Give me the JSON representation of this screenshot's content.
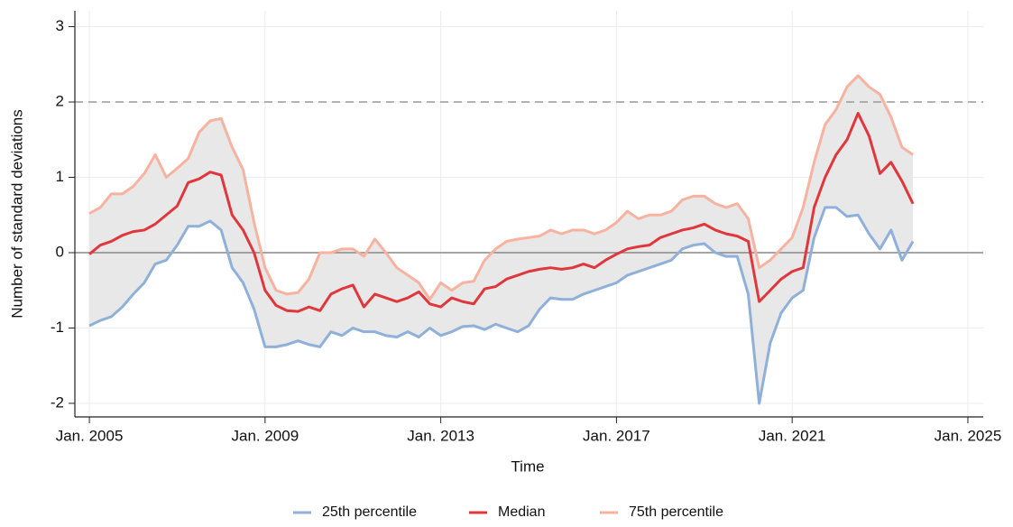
{
  "chart_data": {
    "type": "line",
    "x_label": "Time",
    "y_label": "Number of standard deviations",
    "x": [
      2005,
      2005.25,
      2005.5,
      2005.75,
      2006,
      2006.25,
      2006.5,
      2006.75,
      2007,
      2007.25,
      2007.5,
      2007.75,
      2008,
      2008.25,
      2008.5,
      2008.75,
      2009,
      2009.25,
      2009.5,
      2009.75,
      2010,
      2010.25,
      2010.5,
      2010.75,
      2011,
      2011.25,
      2011.5,
      2011.75,
      2012,
      2012.25,
      2012.5,
      2012.75,
      2013,
      2013.25,
      2013.5,
      2013.75,
      2014,
      2014.25,
      2014.5,
      2014.75,
      2015,
      2015.25,
      2015.5,
      2015.75,
      2016,
      2016.25,
      2016.5,
      2016.75,
      2017,
      2017.25,
      2017.5,
      2017.75,
      2018,
      2018.25,
      2018.5,
      2018.75,
      2019,
      2019.25,
      2019.5,
      2019.75,
      2020,
      2020.25,
      2020.5,
      2020.75,
      2021,
      2021.25,
      2021.5,
      2021.75,
      2022,
      2022.25,
      2022.5,
      2022.75,
      2023,
      2023.25,
      2023.5,
      2023.75
    ],
    "series": [
      {
        "name": "25th percentile",
        "color": "#8fb0d9",
        "values": [
          -0.97,
          -0.9,
          -0.85,
          -0.72,
          -0.55,
          -0.4,
          -0.15,
          -0.1,
          0.1,
          0.35,
          0.35,
          0.42,
          0.3,
          -0.2,
          -0.4,
          -0.75,
          -1.25,
          -1.25,
          -1.22,
          -1.17,
          -1.22,
          -1.25,
          -1.05,
          -1.1,
          -1.0,
          -1.05,
          -1.05,
          -1.1,
          -1.12,
          -1.05,
          -1.12,
          -1.0,
          -1.1,
          -1.05,
          -0.98,
          -0.97,
          -1.02,
          -0.95,
          -1.0,
          -1.05,
          -0.97,
          -0.75,
          -0.6,
          -0.62,
          -0.62,
          -0.55,
          -0.5,
          -0.45,
          -0.4,
          -0.3,
          -0.25,
          -0.2,
          -0.15,
          -0.1,
          0.05,
          0.1,
          0.12,
          0.0,
          -0.05,
          -0.05,
          -0.55,
          -2.0,
          -1.2,
          -0.8,
          -0.6,
          -0.5,
          0.2,
          0.6,
          0.6,
          0.48,
          0.5,
          0.25,
          0.05,
          0.3,
          -0.1,
          0.15
        ]
      },
      {
        "name": "Median",
        "color": "#e0373c",
        "values": [
          -0.02,
          0.1,
          0.15,
          0.23,
          0.28,
          0.3,
          0.38,
          0.5,
          0.62,
          0.93,
          0.98,
          1.07,
          1.03,
          0.5,
          0.3,
          0.0,
          -0.5,
          -0.7,
          -0.77,
          -0.78,
          -0.72,
          -0.77,
          -0.55,
          -0.48,
          -0.43,
          -0.72,
          -0.55,
          -0.6,
          -0.65,
          -0.6,
          -0.52,
          -0.68,
          -0.72,
          -0.6,
          -0.65,
          -0.68,
          -0.48,
          -0.45,
          -0.35,
          -0.3,
          -0.25,
          -0.22,
          -0.2,
          -0.22,
          -0.2,
          -0.15,
          -0.2,
          -0.1,
          -0.02,
          0.05,
          0.08,
          0.1,
          0.2,
          0.25,
          0.3,
          0.33,
          0.38,
          0.3,
          0.25,
          0.22,
          0.15,
          -0.65,
          -0.5,
          -0.35,
          -0.25,
          -0.2,
          0.6,
          1.0,
          1.3,
          1.5,
          1.85,
          1.55,
          1.05,
          1.2,
          0.95,
          0.65
        ]
      },
      {
        "name": "75th percentile",
        "color": "#f7b2a0",
        "values": [
          0.52,
          0.6,
          0.78,
          0.78,
          0.88,
          1.05,
          1.3,
          1.0,
          1.12,
          1.25,
          1.6,
          1.75,
          1.78,
          1.4,
          1.1,
          0.4,
          -0.2,
          -0.5,
          -0.55,
          -0.53,
          -0.35,
          0.0,
          0.0,
          0.05,
          0.05,
          -0.05,
          0.18,
          0.0,
          -0.2,
          -0.3,
          -0.4,
          -0.62,
          -0.4,
          -0.5,
          -0.4,
          -0.38,
          -0.1,
          0.05,
          0.15,
          0.18,
          0.2,
          0.22,
          0.3,
          0.25,
          0.3,
          0.3,
          0.25,
          0.3,
          0.4,
          0.55,
          0.45,
          0.5,
          0.5,
          0.55,
          0.7,
          0.75,
          0.75,
          0.65,
          0.6,
          0.65,
          0.45,
          -0.2,
          -0.1,
          0.05,
          0.2,
          0.6,
          1.2,
          1.7,
          1.9,
          2.2,
          2.35,
          2.2,
          2.1,
          1.8,
          1.4,
          1.3
        ]
      }
    ],
    "band": {
      "lower": 0,
      "upper": 2,
      "color": "#e8e8e8"
    },
    "reference_lines": [
      {
        "value": 2,
        "style": "dashed",
        "color": "#999999"
      },
      {
        "value": 0,
        "style": "solid",
        "color": "#888888"
      }
    ],
    "xlim": [
      2004.67,
      2025.35
    ],
    "ylim": [
      -2.18,
      3.21
    ],
    "xticks": [
      {
        "value": 2005,
        "label": "Jan. 2005"
      },
      {
        "value": 2009,
        "label": "Jan. 2009"
      },
      {
        "value": 2013,
        "label": "Jan. 2013"
      },
      {
        "value": 2017,
        "label": "Jan. 2017"
      },
      {
        "value": 2021,
        "label": "Jan. 2021"
      },
      {
        "value": 2025,
        "label": "Jan. 2025"
      }
    ],
    "yticks": [
      -2,
      -1,
      0,
      1,
      2,
      3
    ],
    "grid": true,
    "legend": "bottom"
  }
}
